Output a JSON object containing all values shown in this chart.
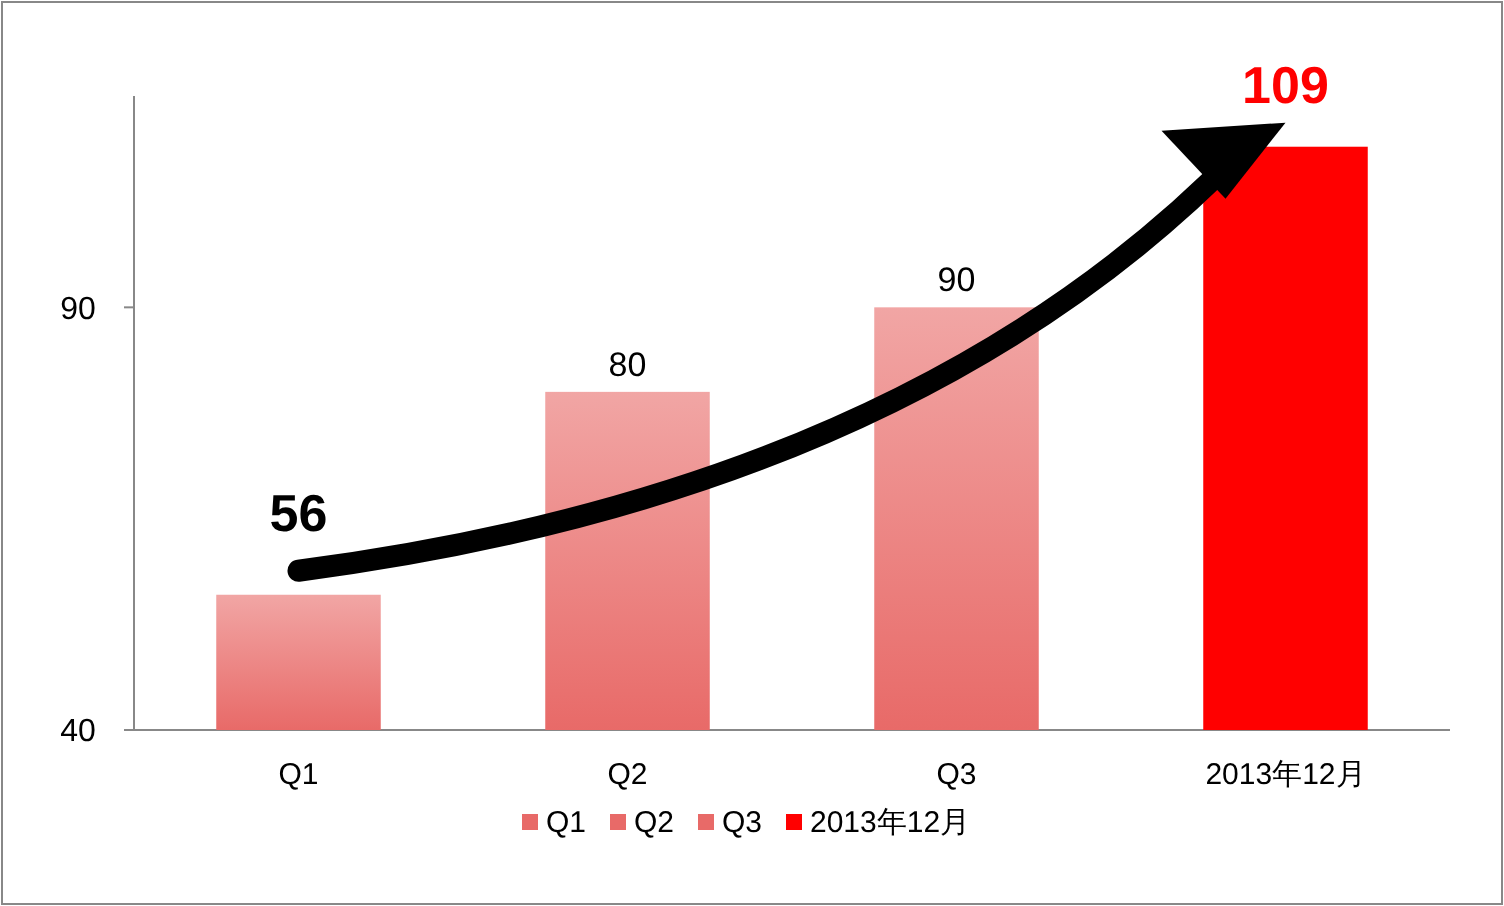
{
  "chart_data": {
    "type": "bar",
    "categories": [
      "Q1",
      "Q2",
      "Q3",
      "2013年12月"
    ],
    "stacked": true,
    "series": [
      {
        "name": "Q1",
        "color": "#e86a68",
        "values": [
          56,
          null,
          null,
          null
        ]
      },
      {
        "name": "Q2",
        "color": "#e86a68",
        "values": [
          null,
          80,
          null,
          null
        ]
      },
      {
        "name": "Q3",
        "color": "#e86a68",
        "values": [
          null,
          null,
          90,
          null
        ]
      },
      {
        "name": "2013年12月",
        "color": "#ff0000",
        "values": [
          null,
          null,
          null,
          109
        ]
      }
    ],
    "ylim": [
      40,
      115
    ],
    "yticks": [
      40,
      90
    ],
    "grid": false,
    "legend": "bottom",
    "data_labels": true
  }
}
